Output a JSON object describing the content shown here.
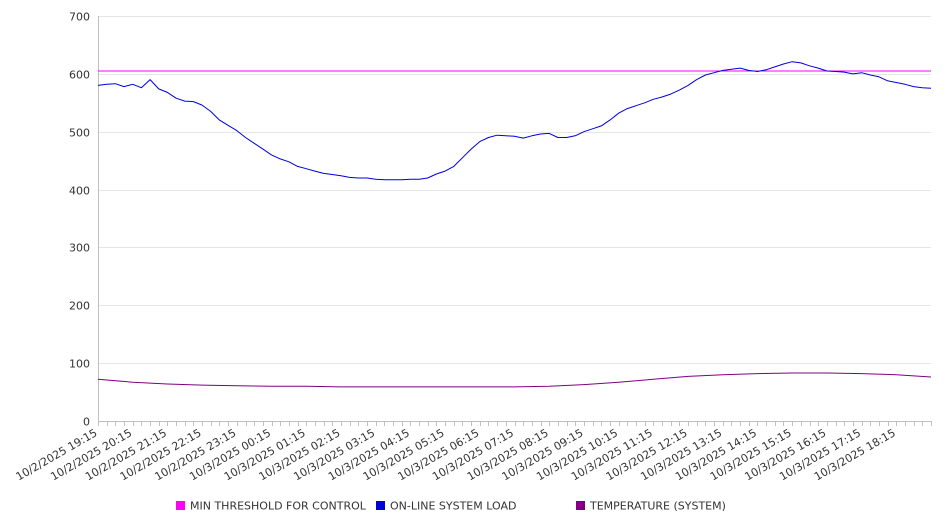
{
  "chart_data": {
    "type": "line",
    "ylim": [
      0,
      700
    ],
    "yticks": [
      0,
      100,
      200,
      300,
      400,
      500,
      600,
      700
    ],
    "grid": "horizontal",
    "legend_position": "bottom",
    "x_range": [
      "10/2/2025 19:15",
      "10/3/2025 19:15"
    ],
    "x_tick_labels": [
      "10/2/2025 19:15",
      "10/2/2025 20:15",
      "10/2/2025 21:15",
      "10/2/2025 22:15",
      "10/2/2025 23:15",
      "10/3/2025 00:15",
      "10/3/2025 01:15",
      "10/3/2025 02:15",
      "10/3/2025 03:15",
      "10/3/2025 04:15",
      "10/3/2025 05:15",
      "10/3/2025 06:15",
      "10/3/2025 07:15",
      "10/3/2025 08:15",
      "10/3/2025 09:15",
      "10/3/2025 10:15",
      "10/3/2025 11:15",
      "10/3/2025 12:15",
      "10/3/2025 13:15",
      "10/3/2025 14:15",
      "10/3/2025 15:15",
      "10/3/2025 16:15",
      "10/3/2025 17:15",
      "10/3/2025 18:15"
    ],
    "series": [
      {
        "name": "MIN THRESHOLD FOR CONTROL",
        "color": "#ff00ff",
        "x": [
          "10/2/2025 19:15",
          "10/3/2025 19:15"
        ],
        "y": [
          605,
          605
        ]
      },
      {
        "name": "ON-LINE SYSTEM LOAD",
        "color": "#0000dd",
        "x": [
          "10/2/2025 19:15",
          "10/2/2025 19:30",
          "10/2/2025 19:45",
          "10/2/2025 20:00",
          "10/2/2025 20:15",
          "10/2/2025 20:30",
          "10/2/2025 20:45",
          "10/2/2025 21:00",
          "10/2/2025 21:15",
          "10/2/2025 21:30",
          "10/2/2025 21:45",
          "10/2/2025 22:00",
          "10/2/2025 22:15",
          "10/2/2025 22:30",
          "10/2/2025 22:45",
          "10/2/2025 23:00",
          "10/2/2025 23:15",
          "10/2/2025 23:30",
          "10/2/2025 23:45",
          "10/3/2025 00:00",
          "10/3/2025 00:15",
          "10/3/2025 00:30",
          "10/3/2025 00:45",
          "10/3/2025 01:00",
          "10/3/2025 01:15",
          "10/3/2025 01:30",
          "10/3/2025 01:45",
          "10/3/2025 02:00",
          "10/3/2025 02:15",
          "10/3/2025 02:30",
          "10/3/2025 02:45",
          "10/3/2025 03:00",
          "10/3/2025 03:15",
          "10/3/2025 03:30",
          "10/3/2025 03:45",
          "10/3/2025 04:00",
          "10/3/2025 04:15",
          "10/3/2025 04:30",
          "10/3/2025 04:45",
          "10/3/2025 05:00",
          "10/3/2025 05:15",
          "10/3/2025 05:30",
          "10/3/2025 05:45",
          "10/3/2025 06:00",
          "10/3/2025 06:15",
          "10/3/2025 06:30",
          "10/3/2025 06:45",
          "10/3/2025 07:00",
          "10/3/2025 07:15",
          "10/3/2025 07:30",
          "10/3/2025 07:45",
          "10/3/2025 08:00",
          "10/3/2025 08:15",
          "10/3/2025 08:30",
          "10/3/2025 08:45",
          "10/3/2025 09:00",
          "10/3/2025 09:15",
          "10/3/2025 09:30",
          "10/3/2025 09:45",
          "10/3/2025 10:00",
          "10/3/2025 10:15",
          "10/3/2025 10:30",
          "10/3/2025 10:45",
          "10/3/2025 11:00",
          "10/3/2025 11:15",
          "10/3/2025 11:30",
          "10/3/2025 11:45",
          "10/3/2025 12:00",
          "10/3/2025 12:15",
          "10/3/2025 12:30",
          "10/3/2025 12:45",
          "10/3/2025 13:00",
          "10/3/2025 13:15",
          "10/3/2025 13:30",
          "10/3/2025 13:45",
          "10/3/2025 14:00",
          "10/3/2025 14:15",
          "10/3/2025 14:30",
          "10/3/2025 14:45",
          "10/3/2025 15:00",
          "10/3/2025 15:15",
          "10/3/2025 15:30",
          "10/3/2025 15:45",
          "10/3/2025 16:00",
          "10/3/2025 16:15",
          "10/3/2025 16:30",
          "10/3/2025 16:45",
          "10/3/2025 17:00",
          "10/3/2025 17:15",
          "10/3/2025 17:30",
          "10/3/2025 17:45",
          "10/3/2025 18:00",
          "10/3/2025 18:15",
          "10/3/2025 18:30",
          "10/3/2025 18:45",
          "10/3/2025 19:00",
          "10/3/2025 19:15"
        ],
        "y": [
          580,
          582,
          583,
          578,
          582,
          576,
          590,
          574,
          568,
          558,
          553,
          552,
          546,
          535,
          520,
          511,
          502,
          490,
          480,
          470,
          460,
          453,
          448,
          440,
          436,
          432,
          428,
          426,
          424,
          421,
          420,
          420,
          418,
          417,
          417,
          417,
          418,
          418,
          420,
          427,
          432,
          440,
          455,
          470,
          483,
          490,
          494,
          493,
          492,
          489,
          493,
          496,
          497,
          490,
          490,
          493,
          500,
          505,
          510,
          520,
          532,
          540,
          545,
          550,
          556,
          560,
          565,
          572,
          580,
          590,
          598,
          602,
          606,
          608,
          610,
          606,
          604,
          607,
          612,
          617,
          621,
          619,
          614,
          610,
          605,
          604,
          603,
          600,
          602,
          598,
          595,
          588,
          585,
          582,
          578,
          576,
          575
        ]
      },
      {
        "name": "TEMPERATURE (SYSTEM)",
        "color": "#800080",
        "x": [
          "10/2/2025 19:15",
          "10/2/2025 20:15",
          "10/2/2025 21:15",
          "10/2/2025 22:15",
          "10/2/2025 23:15",
          "10/3/2025 00:15",
          "10/3/2025 01:15",
          "10/3/2025 02:15",
          "10/3/2025 03:15",
          "10/3/2025 04:15",
          "10/3/2025 05:15",
          "10/3/2025 06:15",
          "10/3/2025 07:15",
          "10/3/2025 08:15",
          "10/3/2025 09:15",
          "10/3/2025 10:15",
          "10/3/2025 11:15",
          "10/3/2025 12:15",
          "10/3/2025 13:15",
          "10/3/2025 14:15",
          "10/3/2025 15:15",
          "10/3/2025 16:15",
          "10/3/2025 17:15",
          "10/3/2025 18:15",
          "10/3/2025 19:15"
        ],
        "y": [
          72,
          67,
          64,
          62,
          61,
          60,
          60,
          59,
          59,
          59,
          59,
          59,
          59,
          60,
          63,
          67,
          72,
          77,
          80,
          82,
          83,
          83,
          82,
          80,
          76
        ]
      }
    ]
  }
}
